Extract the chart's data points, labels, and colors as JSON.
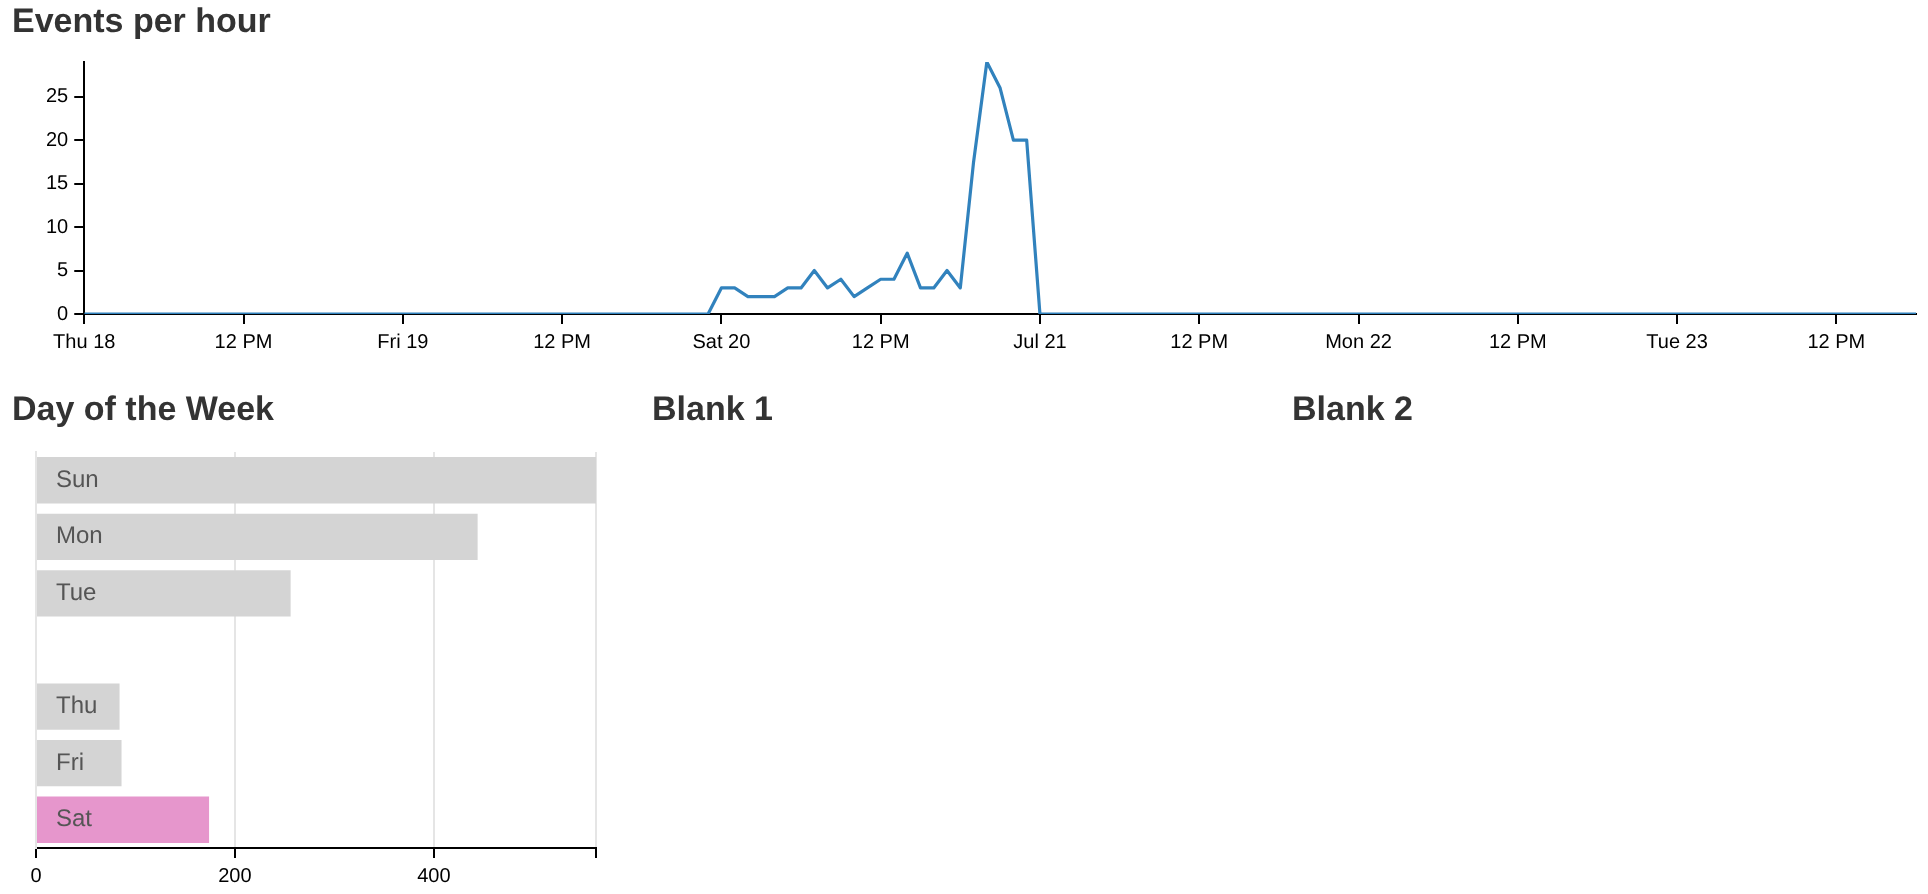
{
  "chart_data": [
    {
      "type": "line",
      "title": "Events per hour",
      "x": [
        "--07-18T00:00",
        "--07-19T23:00",
        "--07-20T00:00",
        "--07-20T01:00",
        "--07-20T02:00",
        "--07-20T03:00",
        "--07-20T04:00",
        "--07-20T05:00",
        "--07-20T06:00",
        "--07-20T07:00",
        "--07-20T08:00",
        "--07-20T09:00",
        "--07-20T10:00",
        "--07-20T11:00",
        "--07-20T12:00",
        "--07-20T13:00",
        "--07-20T14:00",
        "--07-20T15:00",
        "--07-20T16:00",
        "--07-20T17:00",
        "--07-20T18:00",
        "--07-20T19:00",
        "--07-20T20:00",
        "--07-20T21:00",
        "--07-20T22:00",
        "--07-20T23:00",
        "--07-21T00:00",
        "--07-23T18:00"
      ],
      "values": [
        0,
        0,
        3,
        3,
        2,
        2,
        2,
        3,
        3,
        5,
        3,
        4,
        2,
        3,
        4,
        4,
        7,
        3,
        3,
        5,
        3,
        17.5,
        29,
        26,
        20,
        20,
        0,
        0
      ],
      "color": "#3182bd",
      "marker": "none",
      "grid": false,
      "legend": false,
      "xlim": [
        "--07-18T00:00",
        "--07-23T18:00"
      ],
      "xticks": [
        {
          "value": "--07-18T00:00",
          "label": "Thu 18"
        },
        {
          "value": "--07-18T12:00",
          "label": "12 PM"
        },
        {
          "value": "--07-19T00:00",
          "label": "Fri 19"
        },
        {
          "value": "--07-19T12:00",
          "label": "12 PM"
        },
        {
          "value": "--07-20T00:00",
          "label": "Sat 20"
        },
        {
          "value": "--07-20T12:00",
          "label": "12 PM"
        },
        {
          "value": "--07-21T00:00",
          "label": "Jul 21"
        },
        {
          "value": "--07-21T12:00",
          "label": "12 PM"
        },
        {
          "value": "--07-22T00:00",
          "label": "Mon 22"
        },
        {
          "value": "--07-22T12:00",
          "label": "12 PM"
        },
        {
          "value": "--07-23T00:00",
          "label": "Tue 23"
        },
        {
          "value": "--07-23T12:00",
          "label": "12 PM"
        }
      ],
      "ylim": [
        0,
        29
      ],
      "yticks": [
        0,
        5,
        10,
        15,
        20,
        25
      ]
    },
    {
      "type": "bar",
      "orientation": "horizontal",
      "title": "Day of the Week",
      "categories": [
        "Sun",
        "Mon",
        "Tue",
        null,
        "Thu",
        "Fri",
        "Sat"
      ],
      "values": [
        563,
        444,
        256,
        0,
        84,
        86,
        174
      ],
      "colors": [
        "#d4d4d4",
        "#d4d4d4",
        "#d4d4d4",
        "#d4d4d4",
        "#d4d4d4",
        "#d4d4d4",
        "#e696cc"
      ],
      "xlim": [
        0,
        563
      ],
      "xticks": [
        0,
        200,
        400,
        {
          "value": 563,
          "label": null
        }
      ],
      "grid": "x",
      "legend": false
    },
    {
      "type": "other",
      "title": "Blank 1"
    },
    {
      "type": "other",
      "title": "Blank 2"
    }
  ]
}
